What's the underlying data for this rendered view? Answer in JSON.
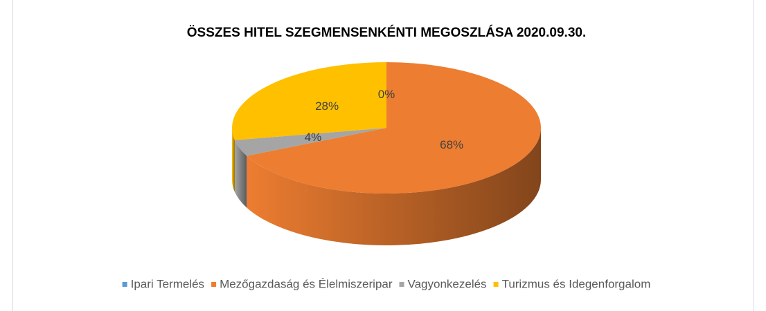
{
  "chart_data": {
    "type": "pie3d",
    "title": "ÖSSZES HITEL SZEGMENSENKÉNTI MEGOSZLÁSA 2020.09.30.",
    "categories": [
      "Ipari Termelés",
      "Mezőgazdaság és Élelmiszeripar",
      "Vagyonkezelés",
      "Turizmus és Idegenforgalom"
    ],
    "values": [
      0,
      68,
      4,
      28
    ],
    "value_labels": [
      "0%",
      "68%",
      "4%",
      "28%"
    ],
    "colors": [
      "#5b9bd5",
      "#ed7d31",
      "#a5a5a5",
      "#ffc000"
    ],
    "legend": "bottom"
  }
}
